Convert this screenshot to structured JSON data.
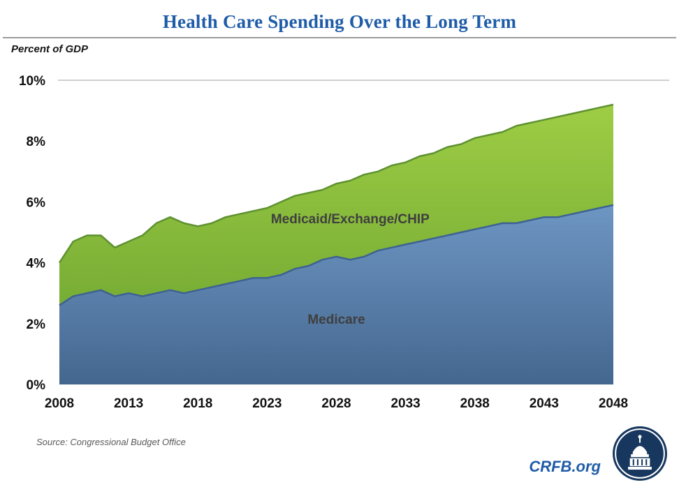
{
  "chart_data": {
    "type": "area",
    "stacked": true,
    "title": "Health Care Spending Over the Long Term",
    "ylabel": "Percent of GDP",
    "xlabel": "",
    "xlim": [
      2008,
      2048
    ],
    "ylim": [
      0,
      10
    ],
    "grid": "single horizontal gridline at 10%",
    "legend_position": "labels inside areas",
    "x": [
      2008,
      2009,
      2010,
      2011,
      2012,
      2013,
      2014,
      2015,
      2016,
      2017,
      2018,
      2019,
      2020,
      2021,
      2022,
      2023,
      2024,
      2025,
      2026,
      2027,
      2028,
      2029,
      2030,
      2031,
      2032,
      2033,
      2034,
      2035,
      2036,
      2037,
      2038,
      2039,
      2040,
      2041,
      2042,
      2043,
      2044,
      2045,
      2046,
      2047,
      2048
    ],
    "series": [
      {
        "name": "Medicare",
        "values": [
          2.6,
          2.9,
          3.0,
          3.1,
          2.9,
          3.0,
          2.9,
          3.0,
          3.1,
          3.0,
          3.1,
          3.2,
          3.3,
          3.4,
          3.5,
          3.5,
          3.6,
          3.8,
          3.9,
          4.1,
          4.2,
          4.1,
          4.2,
          4.4,
          4.5,
          4.6,
          4.7,
          4.8,
          4.9,
          5.0,
          5.1,
          5.2,
          5.3,
          5.3,
          5.4,
          5.5,
          5.5,
          5.6,
          5.7,
          5.8,
          5.9
        ]
      },
      {
        "name": "Medicaid/Exchange/CHIP",
        "values": [
          1.4,
          1.8,
          1.9,
          1.8,
          1.6,
          1.7,
          2.0,
          2.3,
          2.4,
          2.3,
          2.1,
          2.1,
          2.2,
          2.2,
          2.2,
          2.3,
          2.4,
          2.4,
          2.4,
          2.3,
          2.4,
          2.6,
          2.7,
          2.6,
          2.7,
          2.7,
          2.8,
          2.8,
          2.9,
          2.9,
          3.0,
          3.0,
          3.0,
          3.2,
          3.2,
          3.2,
          3.3,
          3.3,
          3.3,
          3.3,
          3.3
        ]
      }
    ],
    "xticks": [
      2008,
      2013,
      2018,
      2023,
      2028,
      2033,
      2038,
      2043,
      2048
    ],
    "yticks": [
      {
        "label": "0%",
        "value": 0
      },
      {
        "label": "2%",
        "value": 2
      },
      {
        "label": "4%",
        "value": 4
      },
      {
        "label": "6%",
        "value": 6
      },
      {
        "label": "8%",
        "value": 8
      },
      {
        "label": "10%",
        "value": 10
      }
    ],
    "area_labels": [
      {
        "text": "Medicaid/Exchange/CHIP",
        "x": 2029,
        "y": 5.3
      },
      {
        "text": "Medicare",
        "x": 2028,
        "y": 2.0
      }
    ]
  },
  "footer": {
    "source": "Source: Congressional Budget Office",
    "brand": "CRFB.org",
    "logo_icon": "capitol-dome-icon"
  },
  "colors": {
    "title_blue": "#1F5CA8",
    "medicare_fill_top": "#6E96C3",
    "medicare_fill_bottom": "#44678F",
    "medicare_stroke": "#3D6293",
    "medicaid_fill_top": "#9ECD45",
    "medicaid_fill_bottom": "#68A02E",
    "medicaid_stroke": "#5E9130",
    "gridline": "#BFBFBF",
    "tick_text": "#111111",
    "area_label_text": "#3F3F3F",
    "logo_navy": "#17375E"
  }
}
